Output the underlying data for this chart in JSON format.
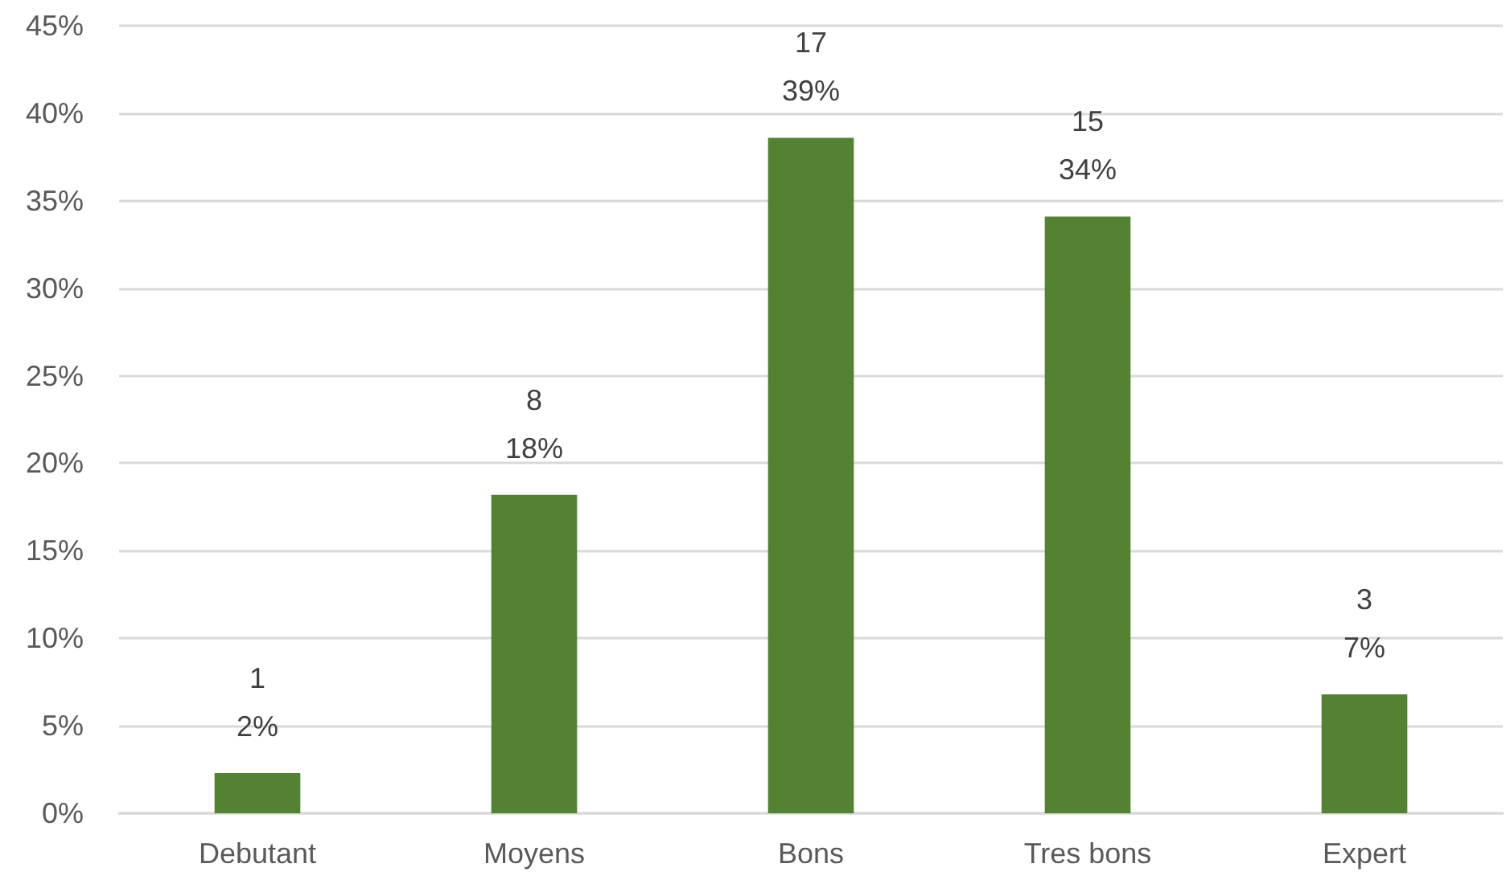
{
  "chart_data": {
    "type": "bar",
    "categories": [
      "Debutant",
      "Moyens",
      "Bons",
      "Tres bons",
      "Expert"
    ],
    "values": [
      2.3,
      18.2,
      38.6,
      34.1,
      6.8
    ],
    "value_labels": [
      "1\n2%",
      "8\n18%",
      "17\n39%",
      "15\n34%",
      "3\n7%"
    ],
    "color": "#548235",
    "ylim": [
      0,
      45
    ],
    "yticks": [
      {
        "value": 0,
        "label": "0%"
      },
      {
        "value": 5,
        "label": "5%"
      },
      {
        "value": 10,
        "label": "10%"
      },
      {
        "value": 15,
        "label": "15%"
      },
      {
        "value": 20,
        "label": "20%"
      },
      {
        "value": 25,
        "label": "25%"
      },
      {
        "value": 30,
        "label": "30%"
      },
      {
        "value": 35,
        "label": "35%"
      },
      {
        "value": 40,
        "label": "40%"
      },
      {
        "value": 45,
        "label": "45%"
      }
    ],
    "grid": "y"
  }
}
